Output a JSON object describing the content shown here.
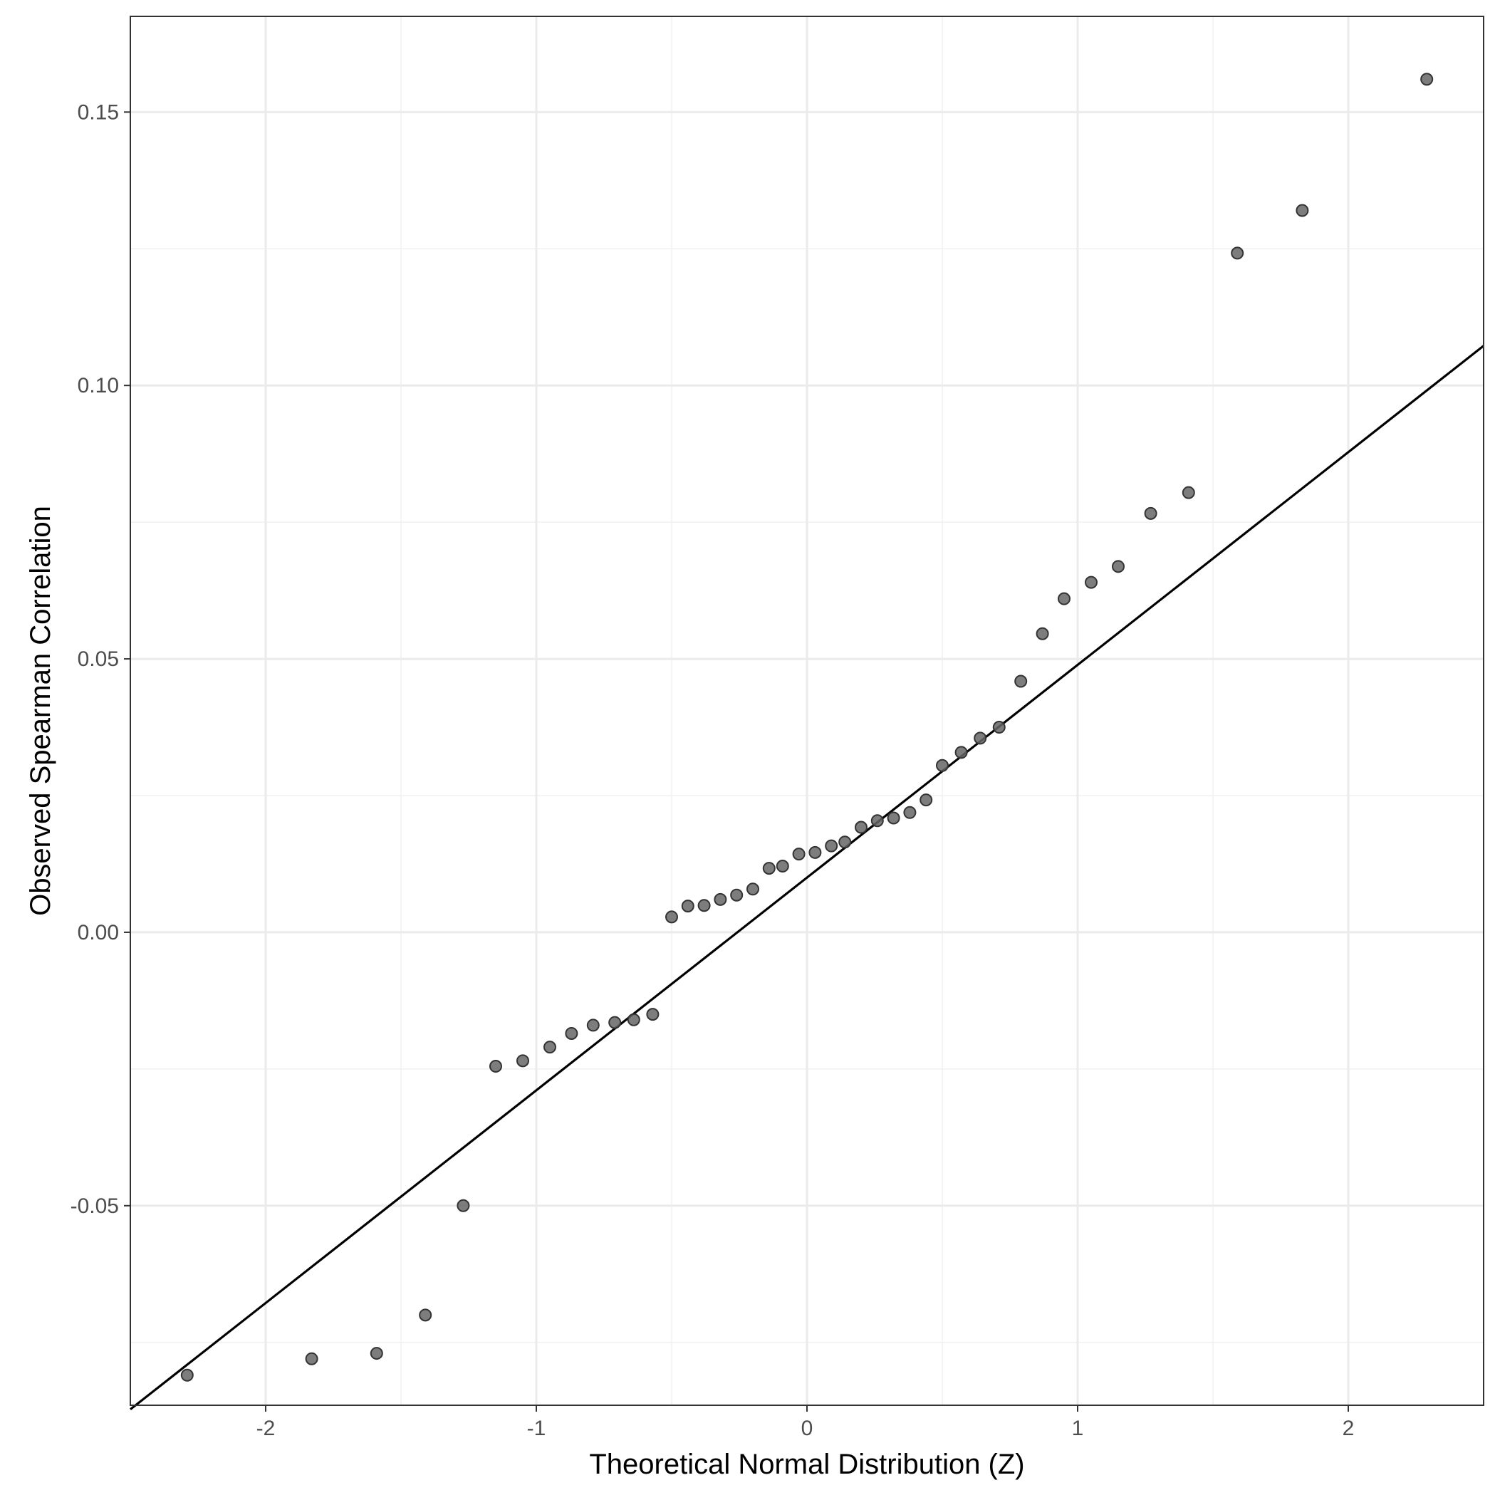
{
  "chart_data": {
    "type": "scatter",
    "title": "",
    "xlabel": "Theoretical Normal Distribution (Z)",
    "ylabel": "Observed Spearman Correlation",
    "xlim": [
      -2.5,
      2.5
    ],
    "ylim": [
      -0.0865,
      0.1675
    ],
    "x_ticks": [
      -2,
      -1,
      0,
      1,
      2
    ],
    "x_tick_labels": [
      "-2",
      "-1",
      "0",
      "1",
      "2"
    ],
    "y_ticks": [
      -0.05,
      0.0,
      0.05,
      0.1,
      0.15
    ],
    "y_tick_labels": [
      "-0.05",
      "0.00",
      "0.05",
      "0.10",
      "0.15"
    ],
    "grid": true,
    "legend": "none",
    "point_color": "#666666",
    "line_color": "#000000",
    "reference_line": {
      "intercept": 0.01,
      "slope": 0.0389
    },
    "series": [
      {
        "x": [
          -2.29,
          -1.83,
          -1.59,
          -1.41,
          -1.27,
          -1.15,
          -1.05,
          -0.95,
          -0.87,
          -0.79,
          -0.71,
          -0.64,
          -0.57,
          -0.5,
          -0.44,
          -0.38,
          -0.32,
          -0.26,
          -0.2,
          -0.14,
          -0.09,
          -0.03,
          0.03,
          0.09,
          0.14,
          0.2,
          0.26,
          0.32,
          0.38,
          0.44,
          0.5,
          0.57,
          0.64,
          0.71,
          0.79,
          0.87,
          0.95,
          1.05,
          1.15,
          1.27,
          1.41,
          1.59,
          1.83,
          2.29
        ],
        "y": [
          -0.081,
          -0.078,
          -0.077,
          -0.07,
          -0.05,
          -0.0245,
          -0.0235,
          -0.021,
          -0.0185,
          -0.017,
          -0.0165,
          -0.016,
          -0.015,
          0.0028,
          0.0048,
          0.0049,
          0.006,
          0.0068,
          0.0079,
          0.0117,
          0.0121,
          0.0143,
          0.0146,
          0.0158,
          0.0165,
          0.0192,
          0.0204,
          0.0209,
          0.0219,
          0.0242,
          0.0305,
          0.0329,
          0.0355,
          0.0375,
          0.0459,
          0.0546,
          0.061,
          0.064,
          0.0669,
          0.0766,
          0.0804,
          0.1242,
          0.132,
          0.156
        ]
      }
    ]
  }
}
